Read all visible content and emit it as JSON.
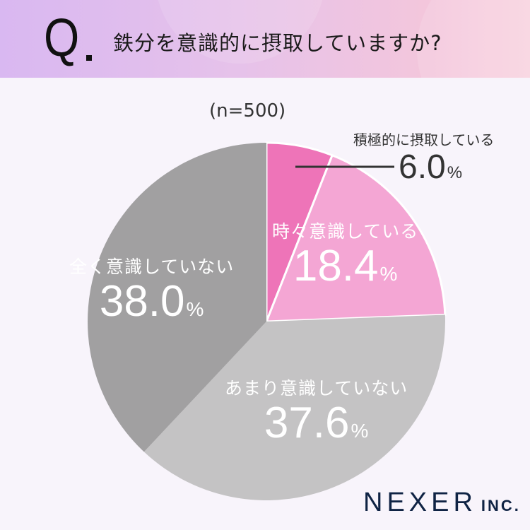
{
  "header": {
    "q_mark": "Q",
    "title": "鉄分を意識的に摂取していますか?"
  },
  "sample": "(n=500)",
  "colors": {
    "header_start": "#d9b8f1",
    "header_end": "#f9d3e0",
    "slice1": "#ee74b8",
    "slice2": "#f4a6d4",
    "slice3": "#c4c3c4",
    "slice4": "#a1a0a1",
    "background": "#f8f4fb",
    "logo": "#0f2344"
  },
  "labels": [
    {
      "name": "積極的に摂取している",
      "pct": "6.0",
      "unit": "%"
    },
    {
      "name": "時々意識している",
      "pct": "18.4",
      "unit": "%"
    },
    {
      "name": "あまり意識していない",
      "pct": "37.6",
      "unit": "%"
    },
    {
      "name": "全く意識していない",
      "pct": "38.0",
      "unit": "%"
    }
  ],
  "logo": {
    "main": "NEXER",
    "suffix": "INC."
  },
  "chart_data": {
    "type": "pie",
    "title": "鉄分を意識的に摂取していますか?",
    "subtitle": "(n=500)",
    "categories": [
      "積極的に摂取している",
      "時々意識している",
      "あまり意識していない",
      "全く意識していない"
    ],
    "values": [
      6.0,
      18.4,
      37.6,
      38.0
    ],
    "unit": "%",
    "start_angle": "12 o'clock, clockwise",
    "legend": "none (direct labels)"
  }
}
